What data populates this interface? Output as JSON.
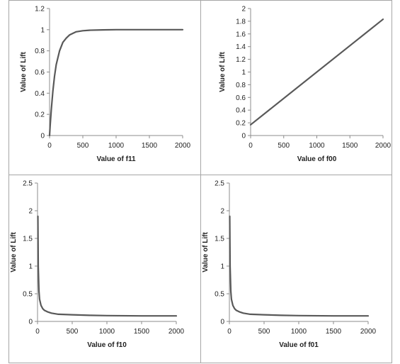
{
  "colors": {
    "line": "#595959",
    "axis": "#8c8c8c",
    "border": "#a6a6a6"
  },
  "chart_data": [
    {
      "type": "line",
      "xlabel": "Value of f11",
      "ylabel": "Value of Lift",
      "xlim": [
        0,
        2000
      ],
      "ylim": [
        0,
        1.2
      ],
      "xticks": [
        "0",
        "500",
        "1000",
        "1500",
        "2000"
      ],
      "yticks": [
        "0",
        "0.2",
        "0.4",
        "0.6",
        "0.8",
        "1",
        "1.2"
      ],
      "grid": false,
      "series": [
        {
          "x": [
            0,
            10,
            25,
            50,
            75,
            100,
            150,
            200,
            250,
            300,
            400,
            500,
            600,
            800,
            1000,
            1200,
            1500,
            2000
          ],
          "values": [
            0,
            0.1,
            0.24,
            0.42,
            0.56,
            0.67,
            0.8,
            0.88,
            0.92,
            0.95,
            0.98,
            0.99,
            0.995,
            0.998,
            1,
            1,
            1,
            1
          ]
        }
      ]
    },
    {
      "type": "line",
      "xlabel": "Value of f00",
      "ylabel": "Value of Lift",
      "xlim": [
        0,
        2000
      ],
      "ylim": [
        0,
        2
      ],
      "xticks": [
        "0",
        "500",
        "1000",
        "1500",
        "2000"
      ],
      "yticks": [
        "0",
        "0.2",
        "0.4",
        "0.6",
        "0.8",
        "1",
        "1.2",
        "1.4",
        "1.6",
        "1.8",
        "2"
      ],
      "grid": false,
      "series": [
        {
          "x": [
            0,
            2000
          ],
          "values": [
            0.17,
            1.83
          ]
        }
      ]
    },
    {
      "type": "line",
      "xlabel": "Value of f10",
      "ylabel": "Value of Lift",
      "xlim": [
        0,
        2000
      ],
      "ylim": [
        0,
        2.5
      ],
      "xticks": [
        "0",
        "500",
        "1000",
        "1500",
        "2000"
      ],
      "yticks": [
        "0",
        "0.5",
        "1",
        "1.5",
        "2",
        "2.5"
      ],
      "grid": false,
      "series": [
        {
          "x": [
            5,
            10,
            20,
            30,
            50,
            75,
            100,
            150,
            200,
            300,
            500,
            750,
            1000,
            1500,
            2000
          ],
          "values": [
            1.9,
            1.0,
            0.55,
            0.4,
            0.29,
            0.23,
            0.2,
            0.17,
            0.15,
            0.13,
            0.12,
            0.11,
            0.105,
            0.1,
            0.1
          ]
        }
      ]
    },
    {
      "type": "line",
      "xlabel": "Value of f01",
      "ylabel": "Value of Lift",
      "xlim": [
        0,
        2000
      ],
      "ylim": [
        0,
        2.5
      ],
      "xticks": [
        "0",
        "500",
        "1000",
        "1500",
        "2000"
      ],
      "yticks": [
        "0",
        "0.5",
        "1",
        "1.5",
        "2",
        "2.5"
      ],
      "grid": false,
      "series": [
        {
          "x": [
            5,
            10,
            20,
            30,
            50,
            75,
            100,
            150,
            200,
            300,
            500,
            750,
            1000,
            1500,
            2000
          ],
          "values": [
            1.9,
            1.0,
            0.55,
            0.4,
            0.29,
            0.23,
            0.2,
            0.17,
            0.15,
            0.13,
            0.12,
            0.11,
            0.105,
            0.1,
            0.1
          ]
        }
      ]
    }
  ]
}
